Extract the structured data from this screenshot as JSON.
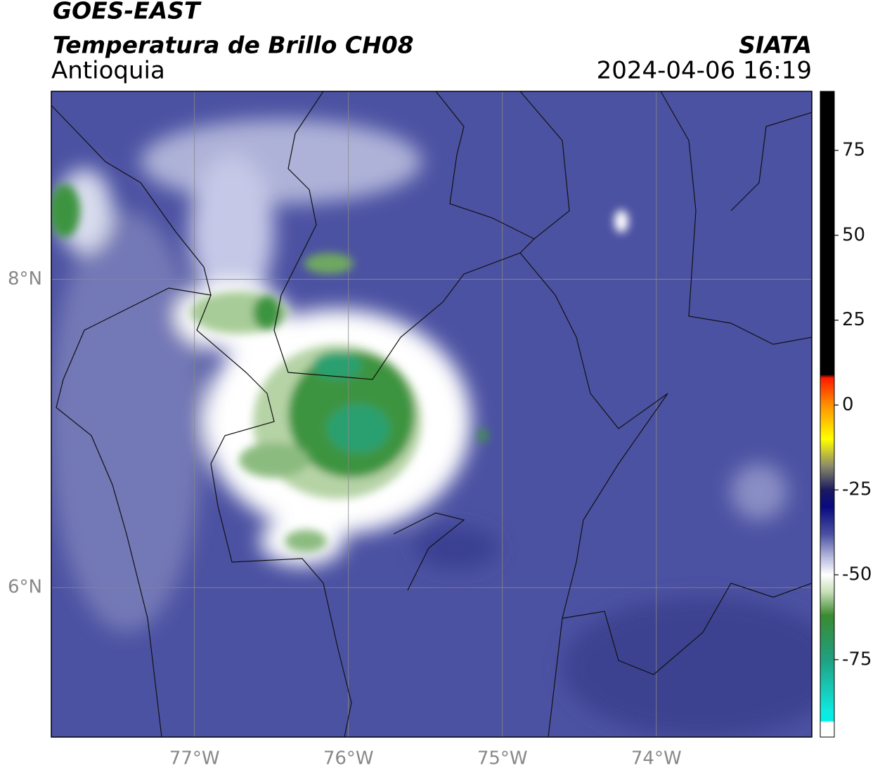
{
  "header": {
    "title": "GOES-EAST",
    "subtitle": "Temperatura de Brillo CH08",
    "region": "Antioquia",
    "source": "SIATA",
    "datetime": "2024-04-06 16:19"
  },
  "map": {
    "lon_lim": [
      -77.93,
      -72.99
    ],
    "lat_lim": [
      5.03,
      9.22
    ],
    "lon_ticks": [
      {
        "value": -77,
        "label": "77°W"
      },
      {
        "value": -76,
        "label": "76°W"
      },
      {
        "value": -75,
        "label": "75°W"
      },
      {
        "value": -74,
        "label": "74°W"
      }
    ],
    "lat_ticks": [
      {
        "value": 8,
        "label": "8°N"
      },
      {
        "value": 6,
        "label": "6°N"
      }
    ],
    "grid": true
  },
  "colorbar": {
    "lim": [
      -97.8,
      92.4
    ],
    "ticks": [
      75,
      50,
      25,
      0,
      -25,
      -50,
      -75
    ],
    "stops": [
      [
        92.4,
        "#000000"
      ],
      [
        9,
        "#000000"
      ],
      [
        8,
        "#ff1a00"
      ],
      [
        0,
        "#ff9000"
      ],
      [
        -10,
        "#ffff00"
      ],
      [
        -18,
        "#8a8a6a"
      ],
      [
        -25,
        "#1a1a60"
      ],
      [
        -30,
        "#0a0a80"
      ],
      [
        -38,
        "#4a50a0"
      ],
      [
        -45,
        "#b8bce0"
      ],
      [
        -50,
        "#ffffff"
      ],
      [
        -55,
        "#c8e0b8"
      ],
      [
        -62,
        "#3a8a30"
      ],
      [
        -75,
        "#20a080"
      ],
      [
        -90,
        "#10e8e0"
      ],
      [
        -93,
        "#00f0e8"
      ],
      [
        -93.5,
        "#ffffff"
      ],
      [
        -97.8,
        "#ffffff"
      ]
    ]
  }
}
